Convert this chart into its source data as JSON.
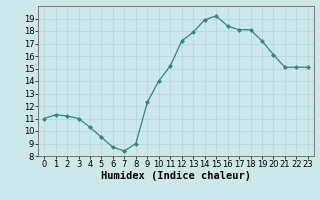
{
  "x": [
    0,
    1,
    2,
    3,
    4,
    5,
    6,
    7,
    8,
    9,
    10,
    11,
    12,
    13,
    14,
    15,
    16,
    17,
    18,
    19,
    20,
    21,
    22,
    23
  ],
  "y": [
    11,
    11.3,
    11.2,
    11.0,
    10.3,
    9.5,
    8.7,
    8.4,
    9.0,
    12.3,
    14.0,
    15.2,
    17.2,
    17.9,
    18.9,
    19.2,
    18.4,
    18.1,
    18.1,
    17.2,
    16.1,
    15.1,
    15.1,
    15.1
  ],
  "line_color": "#2e8b7a",
  "marker": "D",
  "marker_size": 2,
  "bg_color": "#cce8e8",
  "grid_color": "#b8d8d8",
  "xlabel": "Humidex (Indice chaleur)",
  "xlim": [
    -0.5,
    23.5
  ],
  "ylim": [
    8,
    20
  ],
  "yticks": [
    8,
    9,
    10,
    11,
    12,
    13,
    14,
    15,
    16,
    17,
    18,
    19
  ],
  "xticks": [
    0,
    1,
    2,
    3,
    4,
    5,
    6,
    7,
    8,
    9,
    10,
    11,
    12,
    13,
    14,
    15,
    16,
    17,
    18,
    19,
    20,
    21,
    22,
    23
  ],
  "tick_label_fontsize": 6,
  "xlabel_fontsize": 7.5
}
